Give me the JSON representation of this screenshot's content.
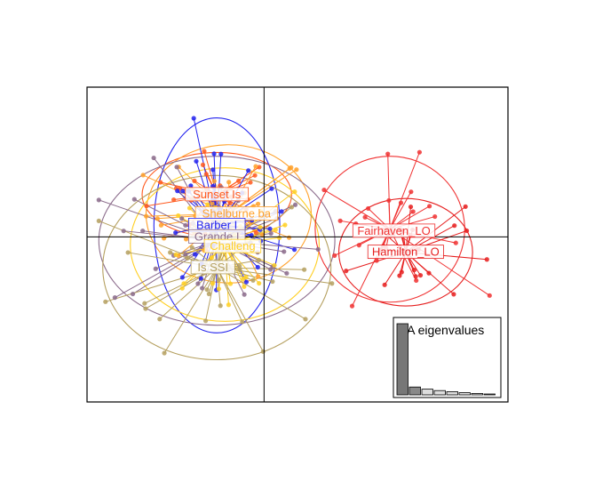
{
  "chart_data": {
    "type": "scatter",
    "title": "",
    "xlabel": "",
    "ylabel": "",
    "xlim": [
      -4.5,
      6.2
    ],
    "ylim": [
      -4.3,
      3.9
    ],
    "axes_origin": [
      0,
      0
    ],
    "groups": [
      {
        "name": "Sunset_Is",
        "color": "#ff5a1f",
        "centroid": [
          -1.2,
          1.1
        ],
        "ellipse": [
          1.9,
          1.1
        ],
        "n": 28,
        "spread": [
          1.4,
          0.9
        ]
      },
      {
        "name": "Shelburne_ba",
        "color": "#ffa12b",
        "centroid": [
          -0.9,
          0.6
        ],
        "ellipse": [
          2.1,
          1.8
        ],
        "n": 30,
        "spread": [
          1.7,
          1.3
        ]
      },
      {
        "name": "Barber_Is",
        "color": "#2222ee",
        "centroid": [
          -1.2,
          0.3
        ],
        "ellipse": [
          1.6,
          2.8
        ],
        "n": 34,
        "spread": [
          1.5,
          1.8
        ]
      },
      {
        "name": "Grande_Is",
        "color": "#8b6b8b",
        "centroid": [
          -1.2,
          -0.1
        ],
        "ellipse": [
          3.0,
          2.2
        ],
        "n": 34,
        "spread": [
          2.2,
          1.6
        ]
      },
      {
        "name": "Challenger",
        "color": "#ffcf22",
        "centroid": [
          -1.0,
          -0.2
        ],
        "ellipse": [
          2.4,
          2.0
        ],
        "n": 30,
        "spread": [
          1.9,
          1.5
        ]
      },
      {
        "name": "Is_SSI",
        "color": "#b5a060",
        "centroid": [
          -1.2,
          -0.8
        ],
        "ellipse": [
          2.9,
          2.4
        ],
        "n": 32,
        "spread": [
          2.1,
          1.7
        ]
      },
      {
        "name": "Fairhaven_LO",
        "color": "#f03232",
        "centroid": [
          3.2,
          0.2
        ],
        "ellipse": [
          1.9,
          1.9
        ],
        "n": 26,
        "spread": [
          1.5,
          1.4
        ]
      },
      {
        "name": "Hamilton_LO",
        "color": "#e61f1f",
        "centroid": [
          3.6,
          -0.4
        ],
        "ellipse": [
          1.7,
          1.4
        ],
        "n": 24,
        "spread": [
          1.2,
          1.1
        ]
      }
    ],
    "eigenvalues": {
      "title": "DA eigenvalues",
      "values": [
        100,
        11,
        8,
        6,
        4.5,
        3,
        2,
        1.2
      ]
    },
    "labels": [
      "Sunset Is",
      "Shelburne ba",
      "Barber I",
      "Grande I",
      "Challeng",
      "Is SSI",
      "Fairhaven_LO",
      "Hamilton_LO"
    ]
  }
}
